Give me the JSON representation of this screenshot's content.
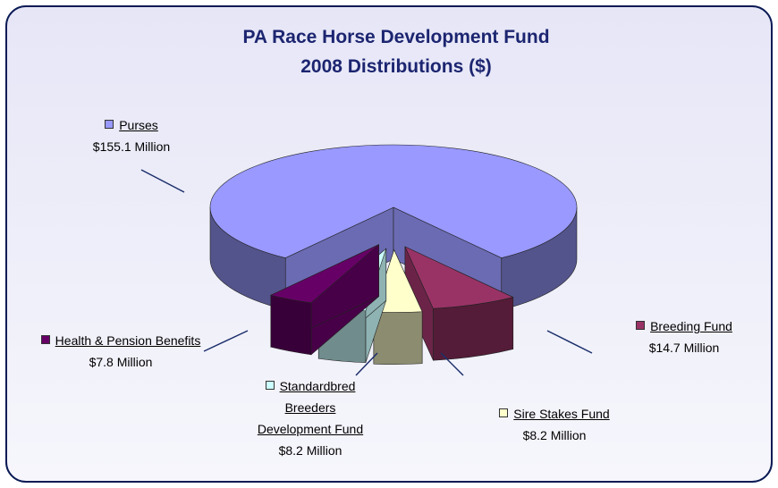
{
  "chart_data": {
    "type": "pie",
    "title": "PA Race Horse Development Fund",
    "subtitle": "2008 Distributions ($)",
    "categories": [
      "Purses",
      "Breeding Fund",
      "Sire Stakes Fund",
      "Standardbred Breeders Development Fund",
      "Health & Pension Benefits"
    ],
    "values": [
      155.1,
      14.7,
      8.2,
      8.2,
      7.8
    ],
    "value_labels": [
      "$155.1 Million",
      "$14.7 Million",
      "$8.2 Million",
      "$8.2 Million",
      "$7.8 Million"
    ],
    "colors": [
      "#9999ff",
      "#993366",
      "#ffffcc",
      "#ccffff",
      "#660066"
    ]
  }
}
